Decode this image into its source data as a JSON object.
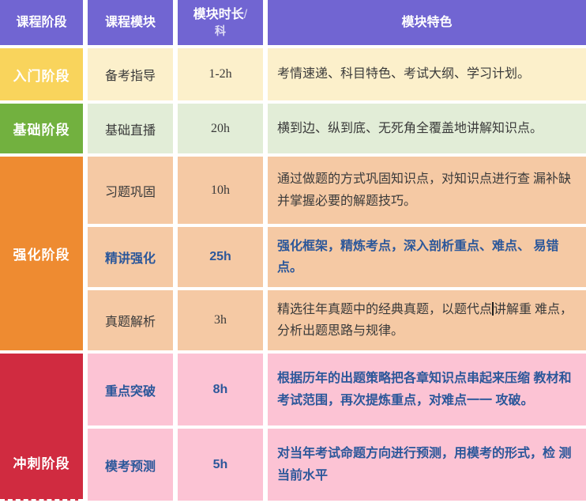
{
  "palette": {
    "header_purple": "#7165D2",
    "stage_yellow": "#F9D45C",
    "stage_green": "#72B13F",
    "stage_orange": "#EE8B31",
    "stage_red": "#D02B40",
    "row_cream": "#FCF0CB",
    "row_light_green": "#E2EDD7",
    "row_peach": "#F5C9A4",
    "row_pink": "#FCC3D4",
    "emphasis_navy": "#2B579A",
    "body_text": "#3A3A3A",
    "gap_white": "#FFFFFF"
  },
  "header": {
    "stage": "课程阶段",
    "module": "课程模块",
    "duration_line1": "模块时长",
    "duration_slash": "/",
    "duration_line2": "科",
    "features": "模块特色"
  },
  "stages": [
    {
      "name": "入门阶段",
      "modules": [
        {
          "name": "备考指导",
          "duration": "1-2h",
          "feature": "考情速递、科目特色、考试大纲、学习计划。"
        }
      ]
    },
    {
      "name": "基础阶段",
      "modules": [
        {
          "name": "基础直播",
          "duration": "20h",
          "feature": "横到边、纵到底、无死角全覆盖地讲解知识点。"
        }
      ]
    },
    {
      "name": "强化阶段",
      "modules": [
        {
          "name": "习题巩固",
          "duration": "10h",
          "feature": "通过做题的方式巩固知识点，对知识点进行查 漏补缺并掌握必要的解题技巧。"
        },
        {
          "name": "精讲强化",
          "duration": "25h",
          "feature": "强化框架，精炼考点，深入剖析重点、难点、 易错点。"
        },
        {
          "name": "真题解析",
          "duration": "3h",
          "feature_before_caret": "精选往年真题中的经典真题，以题代点",
          "feature_after_caret": "讲解重 难点，分析出题思路与规律。"
        }
      ]
    },
    {
      "name": "冲刺阶段",
      "modules": [
        {
          "name": "重点突破",
          "duration": "8h",
          "feature": "根据历年的出题策略把各章知识点串起来压缩 教材和考试范围，再次提炼重点，对难点一一 攻破。"
        },
        {
          "name": "模考预测",
          "duration": "5h",
          "feature": "对当年考试命题方向进行预测，用模考的形式，检 测当前水平"
        }
      ]
    }
  ]
}
